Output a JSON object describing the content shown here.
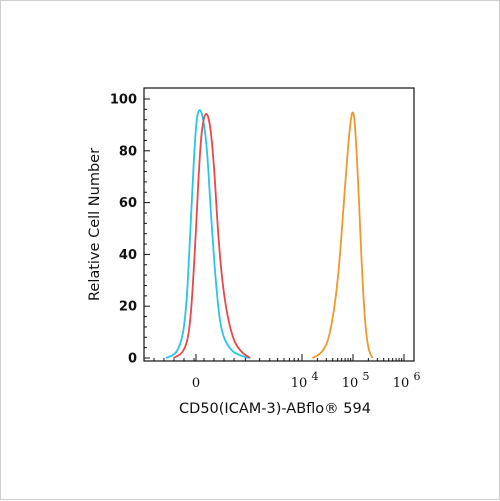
{
  "chart_data": {
    "type": "line",
    "title": "",
    "xlabel": "CD50(ICAM-3)-ABflo® 594",
    "ylabel": "Relative Cell Number",
    "x_scale": "biexponential",
    "ylim": [
      0,
      100
    ],
    "y_ticks": [
      "0",
      "20",
      "40",
      "60",
      "80",
      "100"
    ],
    "x_ticks": [
      {
        "base": "0",
        "exp": "",
        "value": 0
      },
      {
        "base": "10",
        "exp": "4",
        "value": 10000
      },
      {
        "base": "10",
        "exp": "5",
        "value": 100000
      },
      {
        "base": "10",
        "exp": "6",
        "value": 1000000
      }
    ],
    "grid": false,
    "legend": "none",
    "series": [
      {
        "color": "#29c5e6",
        "x": [
          -1200,
          -700,
          -400,
          -200,
          0,
          150,
          300,
          450,
          600,
          800,
          1000,
          1300,
          1700,
          2200
        ],
        "y": [
          0,
          2,
          15,
          55,
          92,
          97,
          92,
          80,
          55,
          28,
          10,
          3,
          1,
          0
        ]
      },
      {
        "color": "#e8484a",
        "x": [
          -900,
          -500,
          -250,
          -50,
          150,
          300,
          450,
          600,
          750,
          900,
          1100,
          1400,
          1800,
          2300
        ],
        "y": [
          0,
          2,
          10,
          40,
          80,
          93,
          95,
          88,
          70,
          45,
          22,
          7,
          2,
          0
        ]
      },
      {
        "color": "#f0982a",
        "x": [
          16000,
          25000,
          35000,
          50000,
          65000,
          80000,
          90000,
          100000,
          110000,
          125000,
          145000,
          170000,
          200000,
          240000
        ],
        "y": [
          0,
          2,
          8,
          28,
          58,
          82,
          92,
          96,
          90,
          70,
          40,
          14,
          3,
          0
        ]
      }
    ]
  }
}
